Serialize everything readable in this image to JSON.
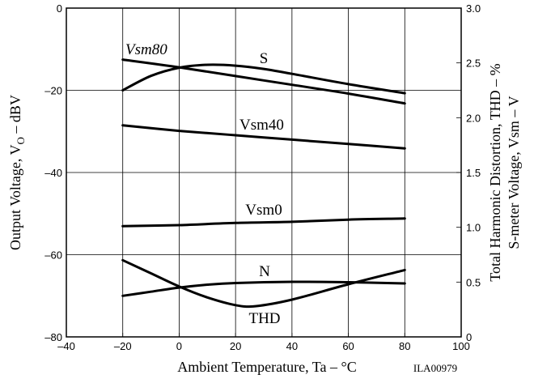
{
  "chart_data": {
    "type": "line",
    "title": "",
    "xlabel": "Ambient Temperature, Ta – °C",
    "ylabel_left": {
      "pre": "Output Voltage, V",
      "sub": "O",
      "post": " – dBV"
    },
    "ylabel_right_line1": "Total Harmonic Distortion, THD – %",
    "ylabel_right_line2": "S-meter Voltage, Vsm – V",
    "xlim": [
      -40,
      100
    ],
    "ylim_left": [
      -80,
      0
    ],
    "ylim_right": [
      0,
      3.0
    ],
    "x_ticks": [
      "–40",
      "–20",
      "0",
      "20",
      "40",
      "60",
      "80",
      "100"
    ],
    "y_left_ticks": [
      "0",
      "–20",
      "–40",
      "–60",
      "–80"
    ],
    "y_right_ticks": [
      "3.0",
      "2.5",
      "2.0",
      "1.5",
      "1.0",
      "0.5",
      "0"
    ],
    "grid": true,
    "part_code": "ILA00979",
    "series": [
      {
        "name": "Vsm80",
        "axis": "right",
        "x": [
          -20,
          0,
          20,
          40,
          60,
          80
        ],
        "y": [
          2.53,
          2.46,
          2.38,
          2.3,
          2.22,
          2.13
        ]
      },
      {
        "name": "S",
        "axis": "left",
        "x": [
          -20,
          -10,
          0,
          10,
          20,
          30,
          40,
          60,
          80
        ],
        "y": [
          -20,
          -16.5,
          -14.5,
          -13.8,
          -14.0,
          -14.8,
          -16.0,
          -18.5,
          -20.7
        ]
      },
      {
        "name": "Vsm40",
        "axis": "right",
        "x": [
          -20,
          0,
          20,
          40,
          60,
          80
        ],
        "y": [
          1.93,
          1.88,
          1.84,
          1.8,
          1.76,
          1.72
        ]
      },
      {
        "name": "Vsm0",
        "axis": "right",
        "x": [
          -20,
          0,
          20,
          40,
          60,
          80
        ],
        "y": [
          1.01,
          1.02,
          1.04,
          1.05,
          1.07,
          1.08
        ]
      },
      {
        "name": "N",
        "axis": "left",
        "x": [
          -20,
          -10,
          0,
          10,
          20,
          40,
          60,
          80
        ],
        "y": [
          -70,
          -69,
          -68,
          -67.3,
          -66.9,
          -66.6,
          -66.7,
          -67.0
        ]
      },
      {
        "name": "THD",
        "axis": "right",
        "x": [
          -20,
          -10,
          0,
          10,
          20,
          27,
          40,
          60,
          80
        ],
        "y": [
          0.7,
          0.58,
          0.46,
          0.36,
          0.29,
          0.28,
          0.34,
          0.48,
          0.61
        ]
      }
    ]
  }
}
